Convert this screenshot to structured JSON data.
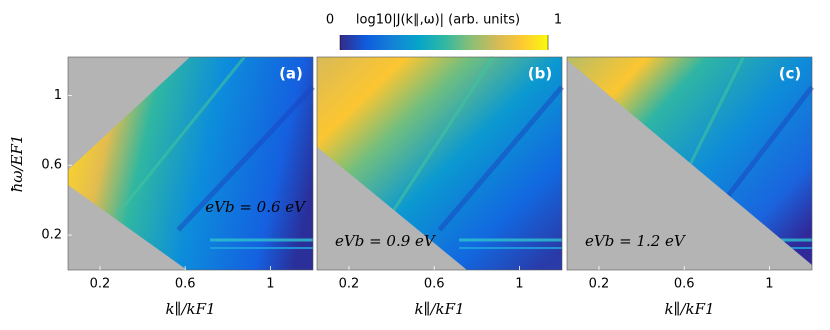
{
  "colorbar": {
    "label": "log10|J(k∥,ω)| (arb. units)",
    "clim": [
      0,
      1
    ],
    "ticks": [
      0,
      1
    ],
    "colors": [
      "#352a87",
      "#0f5cdd",
      "#1481d6",
      "#06a4ca",
      "#2eb7a4",
      "#87bf77",
      "#d1bb59",
      "#fec832",
      "#f9fb0e"
    ]
  },
  "chart_data": [
    {
      "type": "heatmap",
      "panel_label": "(a)",
      "annotation": "eVb = 0.6 eV",
      "xlabel": "k∥/kF1",
      "ylabel": "ħω/EF1",
      "xlim": [
        0.05,
        1.2
      ],
      "ylim": [
        0,
        1.22
      ],
      "xticks": [
        0.2,
        0.6,
        1.0
      ],
      "yticks": [
        0.2,
        0.6,
        1.0
      ]
    },
    {
      "type": "heatmap",
      "panel_label": "(b)",
      "annotation": "eVb = 0.9 eV",
      "xlabel": "k∥/kF1",
      "xlim": [
        0.05,
        1.2
      ],
      "ylim": [
        0,
        1.22
      ],
      "xticks": [
        0.2,
        0.6,
        1.0
      ]
    },
    {
      "type": "heatmap",
      "panel_label": "(c)",
      "annotation": "eVb = 1.2 eV",
      "xlabel": "k∥/kF1",
      "xlim": [
        0.05,
        1.2
      ],
      "ylim": [
        0,
        1.22
      ],
      "xticks": [
        0.2,
        0.6,
        1.0
      ]
    }
  ]
}
